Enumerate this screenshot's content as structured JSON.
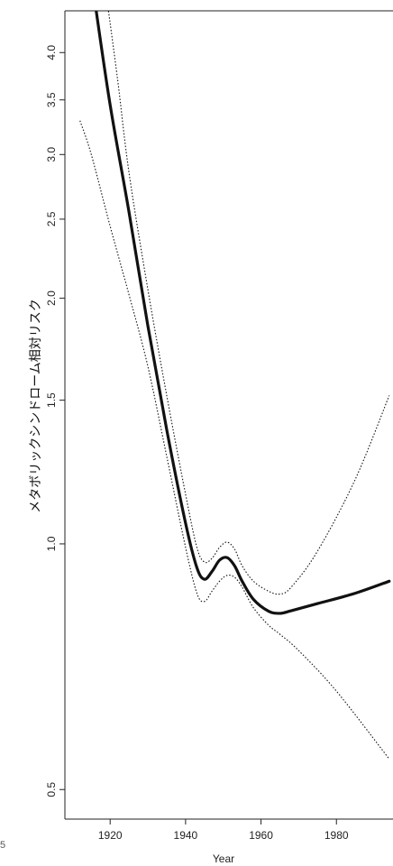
{
  "chart_data": {
    "type": "line",
    "title": "",
    "xlabel": "Year",
    "ylabel": "メタボリックシンドローム相対リスク",
    "y_scale": "log",
    "xlim": [
      1908,
      1995
    ],
    "ylim": [
      0.46,
      4.5
    ],
    "x_ticks": [
      1920,
      1940,
      1960,
      1980
    ],
    "x_tick_labels": [
      "1920",
      "1940",
      "1960",
      "1980"
    ],
    "y_ticks": [
      0.5,
      1.0,
      1.5,
      2.0,
      2.5,
      3.0,
      3.5,
      4.0
    ],
    "y_tick_labels": [
      "0.5",
      "1.0",
      "1.5",
      "2.0",
      "2.5",
      "3.0",
      "3.5",
      "4.0"
    ],
    "left_edge_tick_label": "5",
    "grid": false,
    "legend": "none",
    "series": [
      {
        "role": "estimate",
        "style": "solid-thick",
        "x": [
          1916,
          1920,
          1925,
          1930,
          1935,
          1940,
          1943,
          1945,
          1947,
          1949,
          1951,
          1953,
          1955,
          1958,
          1962,
          1965,
          1968,
          1975,
          1985,
          1994
        ],
        "y": [
          4.6,
          3.45,
          2.55,
          1.85,
          1.38,
          1.06,
          0.935,
          0.905,
          0.925,
          0.955,
          0.962,
          0.94,
          0.9,
          0.855,
          0.827,
          0.822,
          0.828,
          0.845,
          0.87,
          0.9
        ]
      },
      {
        "role": "upper-bound",
        "style": "dotted",
        "x": [
          1919,
          1922,
          1925,
          1930,
          1935,
          1940,
          1943,
          1945,
          1947,
          1949,
          1951,
          1953,
          1955,
          1958,
          1962,
          1965,
          1968,
          1975,
          1985,
          1994
        ],
        "y": [
          4.7,
          3.7,
          2.85,
          2.05,
          1.52,
          1.15,
          0.99,
          0.95,
          0.96,
          0.99,
          1.005,
          0.985,
          0.94,
          0.9,
          0.875,
          0.868,
          0.885,
          0.98,
          1.2,
          1.52
        ]
      },
      {
        "role": "lower-bound",
        "style": "dotted",
        "x": [
          1912,
          1915,
          1920,
          1925,
          1930,
          1935,
          1940,
          1943,
          1945,
          1947,
          1949,
          1951,
          1953,
          1955,
          1958,
          1962,
          1965,
          1970,
          1980,
          1994
        ],
        "y": [
          3.3,
          3.0,
          2.45,
          2.02,
          1.65,
          1.28,
          0.99,
          0.87,
          0.85,
          0.875,
          0.9,
          0.915,
          0.91,
          0.885,
          0.835,
          0.795,
          0.775,
          0.74,
          0.66,
          0.545
        ]
      }
    ],
    "colors": {
      "line": "#111111",
      "axis": "#222222",
      "background": "#ffffff"
    }
  }
}
